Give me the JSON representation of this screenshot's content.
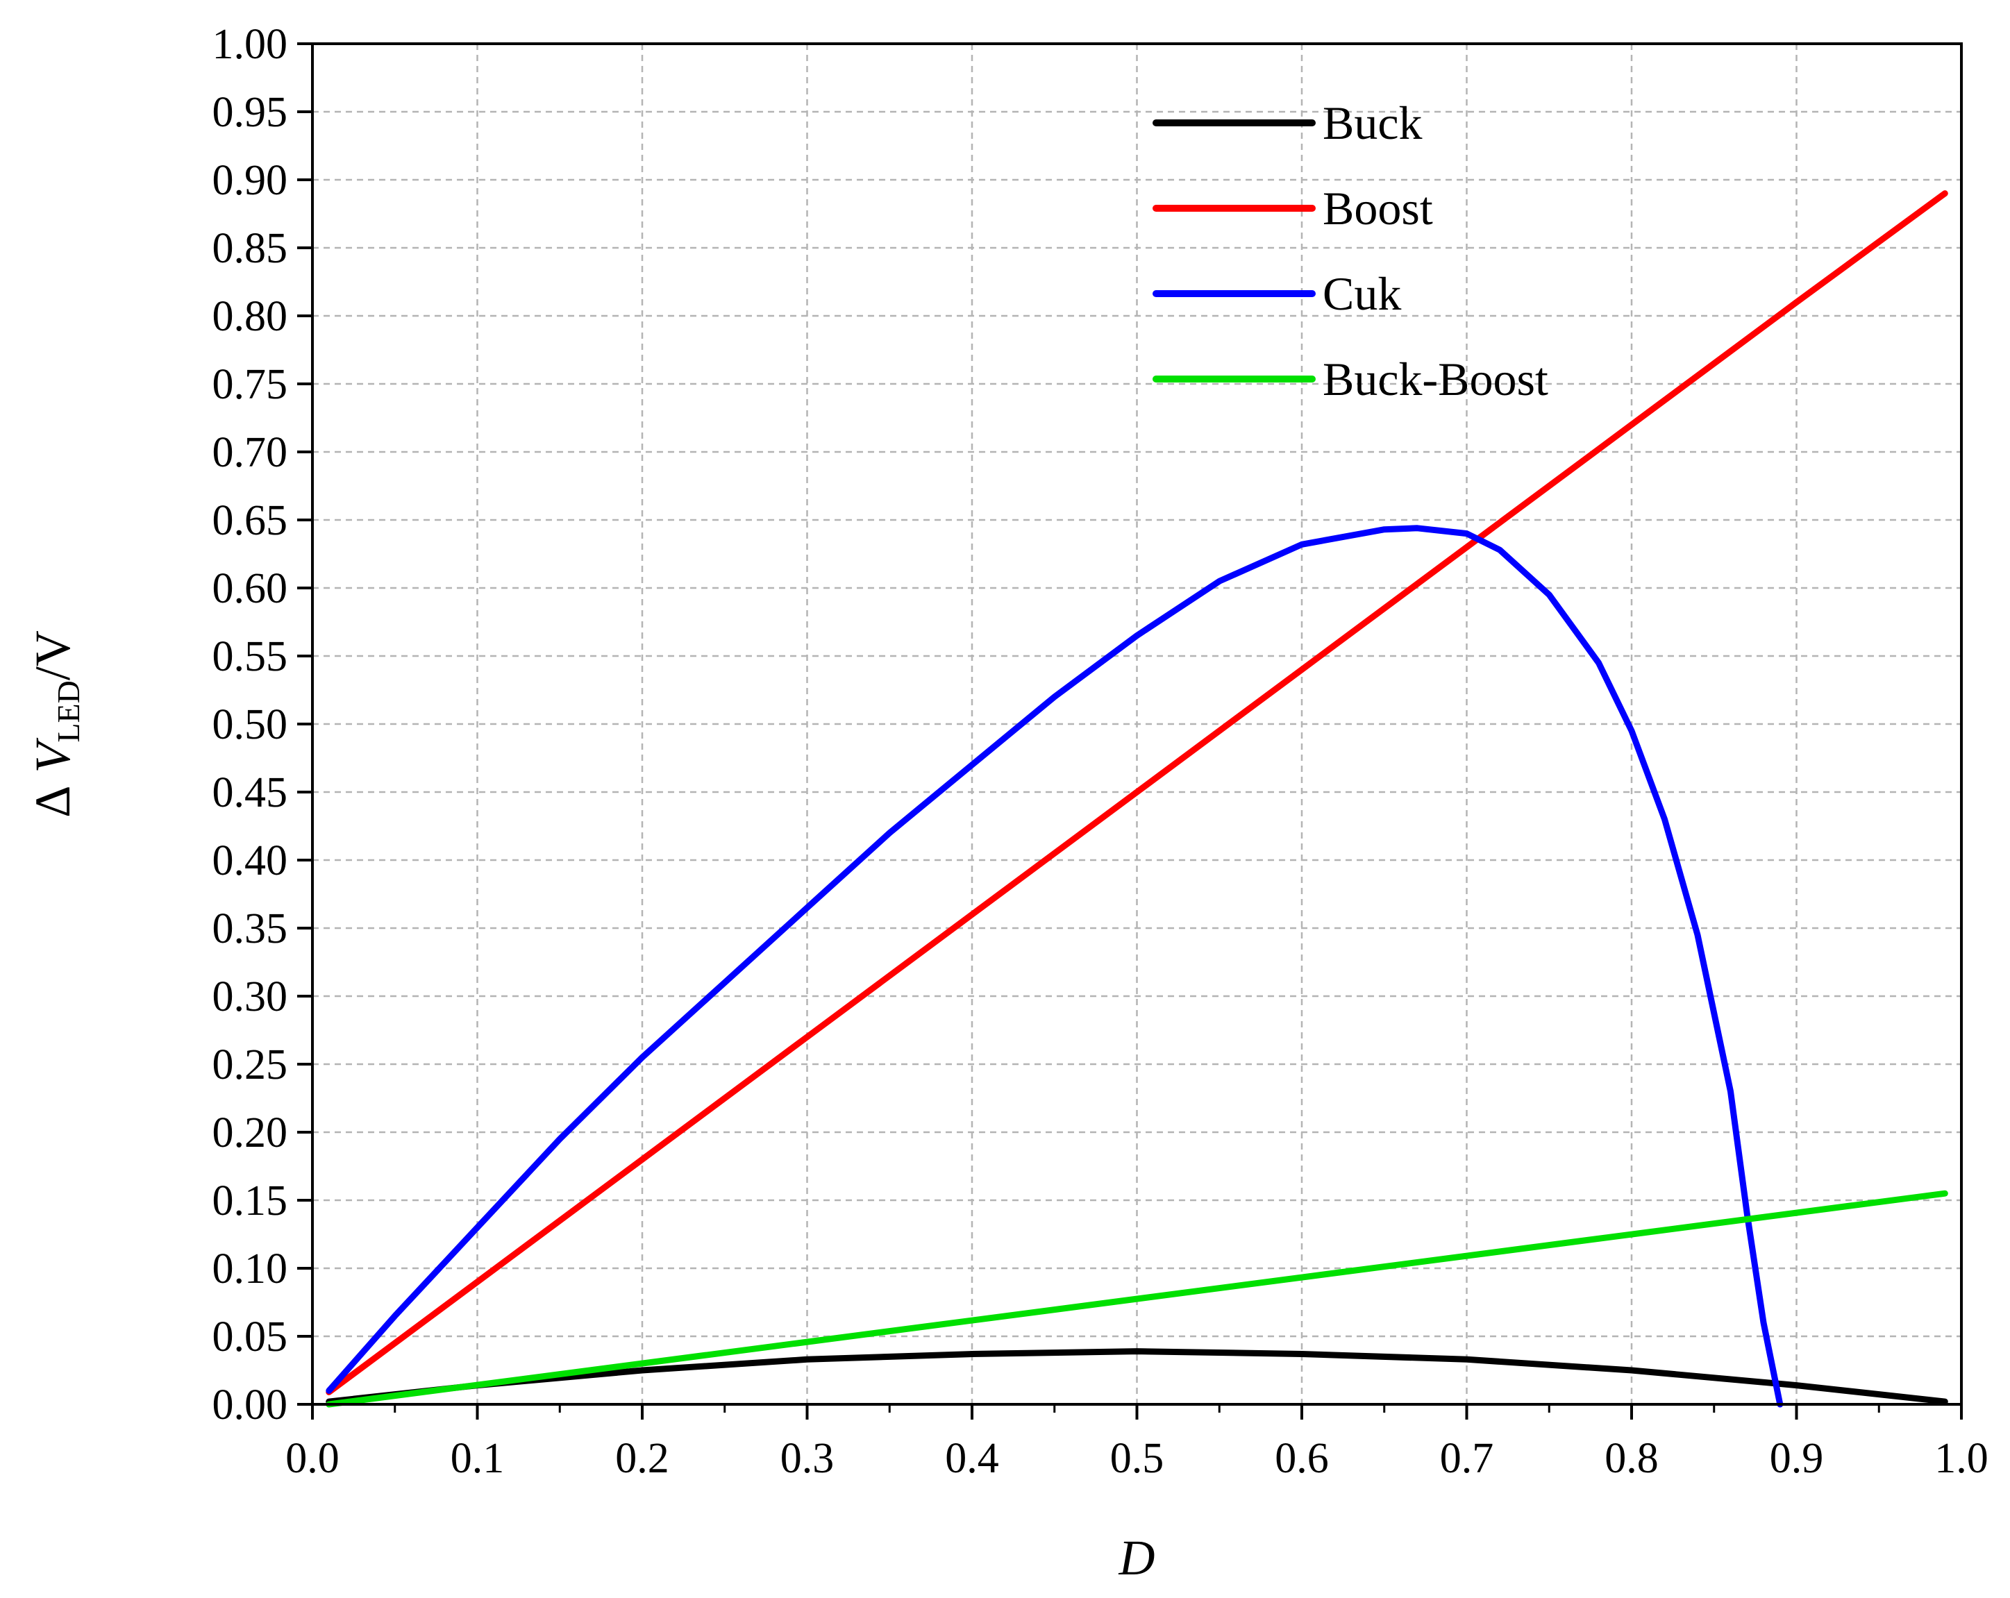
{
  "chart_data": {
    "type": "line",
    "xlabel": "D",
    "ylabel": {
      "delta": "Δ",
      "var": "V",
      "sub": "LED",
      "suffix": "/V"
    },
    "xlim": [
      0.0,
      1.0
    ],
    "ylim": [
      0.0,
      1.0
    ],
    "xticks": [
      0.0,
      0.1,
      0.2,
      0.3,
      0.4,
      0.5,
      0.6,
      0.7,
      0.8,
      0.9,
      1.0
    ],
    "xtick_labels": [
      "0.0",
      "0.1",
      "0.2",
      "0.3",
      "0.4",
      "0.5",
      "0.6",
      "0.7",
      "0.8",
      "0.9",
      "1.0"
    ],
    "yticks": [
      0.0,
      0.05,
      0.1,
      0.15,
      0.2,
      0.25,
      0.3,
      0.35,
      0.4,
      0.45,
      0.5,
      0.55,
      0.6,
      0.65,
      0.7,
      0.75,
      0.8,
      0.85,
      0.9,
      0.95,
      1.0
    ],
    "ytick_labels": [
      "0.00",
      "0.05",
      "0.10",
      "0.15",
      "0.20",
      "0.25",
      "0.30",
      "0.35",
      "0.40",
      "0.45",
      "0.50",
      "0.55",
      "0.60",
      "0.65",
      "0.70",
      "0.75",
      "0.80",
      "0.85",
      "0.90",
      "0.95",
      "1.00"
    ],
    "grid": true,
    "legend_position": "top-center",
    "series": [
      {
        "name": "Buck",
        "color": "#000000",
        "x": [
          0.01,
          0.1,
          0.2,
          0.3,
          0.4,
          0.5,
          0.6,
          0.7,
          0.8,
          0.9,
          0.99
        ],
        "y": [
          0.002,
          0.014,
          0.025,
          0.033,
          0.037,
          0.039,
          0.037,
          0.033,
          0.025,
          0.014,
          0.002
        ]
      },
      {
        "name": "Boost",
        "color": "#ff0000",
        "x": [
          0.01,
          0.1,
          0.2,
          0.3,
          0.4,
          0.5,
          0.6,
          0.7,
          0.8,
          0.9,
          0.99
        ],
        "y": [
          0.009,
          0.09,
          0.18,
          0.27,
          0.36,
          0.45,
          0.54,
          0.63,
          0.72,
          0.81,
          0.89
        ]
      },
      {
        "name": "Cuk",
        "color": "#0000ff",
        "x": [
          0.01,
          0.05,
          0.1,
          0.15,
          0.2,
          0.25,
          0.3,
          0.35,
          0.4,
          0.45,
          0.5,
          0.55,
          0.6,
          0.65,
          0.67,
          0.7,
          0.72,
          0.75,
          0.78,
          0.8,
          0.82,
          0.84,
          0.86,
          0.87,
          0.88,
          0.89
        ],
        "y": [
          0.01,
          0.065,
          0.13,
          0.195,
          0.255,
          0.31,
          0.365,
          0.42,
          0.47,
          0.52,
          0.565,
          0.605,
          0.632,
          0.643,
          0.644,
          0.64,
          0.628,
          0.595,
          0.545,
          0.495,
          0.43,
          0.345,
          0.23,
          0.14,
          0.06,
          0.0
        ]
      },
      {
        "name": "Buck-Boost",
        "color": "#00e000",
        "x": [
          0.01,
          0.99
        ],
        "y": [
          0.0,
          0.155
        ]
      }
    ]
  }
}
